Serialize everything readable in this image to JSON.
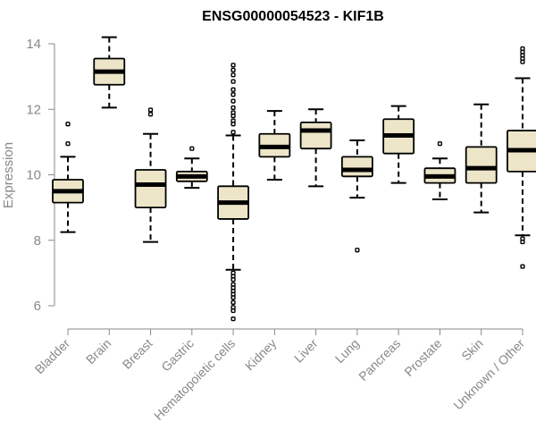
{
  "chart_data": {
    "type": "boxplot",
    "title": "ENSG00000054523 - KIF1B",
    "xlabel": "",
    "ylabel": "Expression",
    "ylim": [
      5.5,
      14.4
    ],
    "yticks": [
      6,
      8,
      10,
      12,
      14
    ],
    "grid": false,
    "legend": "none",
    "colors": {
      "box_fill": "#ede5c8",
      "stroke": "#000000",
      "axis": "#888888",
      "title": "#000000"
    },
    "categories": [
      "Bladder",
      "Brain",
      "Breast",
      "Gastric",
      "Hematopoietic cells",
      "Kidney",
      "Liver",
      "Lung",
      "Pancreas",
      "Prostate",
      "Skin",
      "Unknown / Other"
    ],
    "boxes": [
      {
        "category": "Bladder",
        "whisker_low": 8.25,
        "q1": 9.15,
        "median": 9.5,
        "q3": 9.85,
        "whisker_high": 10.55,
        "outliers": [
          10.95,
          11.55
        ]
      },
      {
        "category": "Brain",
        "whisker_low": 12.05,
        "q1": 12.75,
        "median": 13.15,
        "q3": 13.55,
        "whisker_high": 14.2,
        "outliers": []
      },
      {
        "category": "Breast",
        "whisker_low": 7.95,
        "q1": 9.0,
        "median": 9.7,
        "q3": 10.15,
        "whisker_high": 11.25,
        "outliers": [
          11.85,
          11.98
        ]
      },
      {
        "category": "Gastric",
        "whisker_low": 9.6,
        "q1": 9.8,
        "median": 9.95,
        "q3": 10.1,
        "whisker_high": 10.5,
        "outliers": [
          10.8
        ]
      },
      {
        "category": "Hematopoietic cells",
        "whisker_low": 7.1,
        "q1": 8.65,
        "median": 9.15,
        "q3": 9.65,
        "whisker_high": 11.2,
        "outliers": [
          11.3,
          11.55,
          11.65,
          11.8,
          11.9,
          12.05,
          12.25,
          12.45,
          12.6,
          12.85,
          13.05,
          13.2,
          13.35,
          7.0,
          6.9,
          6.8,
          6.65,
          6.55,
          6.45,
          6.35,
          6.25,
          6.1,
          5.95,
          5.85,
          5.6
        ]
      },
      {
        "category": "Kidney",
        "whisker_low": 9.85,
        "q1": 10.55,
        "median": 10.85,
        "q3": 11.25,
        "whisker_high": 11.95,
        "outliers": []
      },
      {
        "category": "Liver",
        "whisker_low": 9.65,
        "q1": 10.8,
        "median": 11.35,
        "q3": 11.6,
        "whisker_high": 12.0,
        "outliers": []
      },
      {
        "category": "Lung",
        "whisker_low": 9.3,
        "q1": 9.95,
        "median": 10.15,
        "q3": 10.55,
        "whisker_high": 11.05,
        "outliers": [
          7.7
        ]
      },
      {
        "category": "Pancreas",
        "whisker_low": 9.75,
        "q1": 10.65,
        "median": 11.2,
        "q3": 11.7,
        "whisker_high": 12.1,
        "outliers": []
      },
      {
        "category": "Prostate",
        "whisker_low": 9.25,
        "q1": 9.75,
        "median": 9.95,
        "q3": 10.2,
        "whisker_high": 10.5,
        "outliers": [
          10.95
        ]
      },
      {
        "category": "Skin",
        "whisker_low": 8.85,
        "q1": 9.75,
        "median": 10.2,
        "q3": 10.85,
        "whisker_high": 12.15,
        "outliers": []
      },
      {
        "category": "Unknown / Other",
        "whisker_low": 8.15,
        "q1": 10.1,
        "median": 10.75,
        "q3": 11.35,
        "whisker_high": 12.95,
        "outliers": [
          13.45,
          13.55,
          13.65,
          13.75,
          13.85,
          8.05,
          7.95,
          7.2
        ]
      }
    ]
  }
}
